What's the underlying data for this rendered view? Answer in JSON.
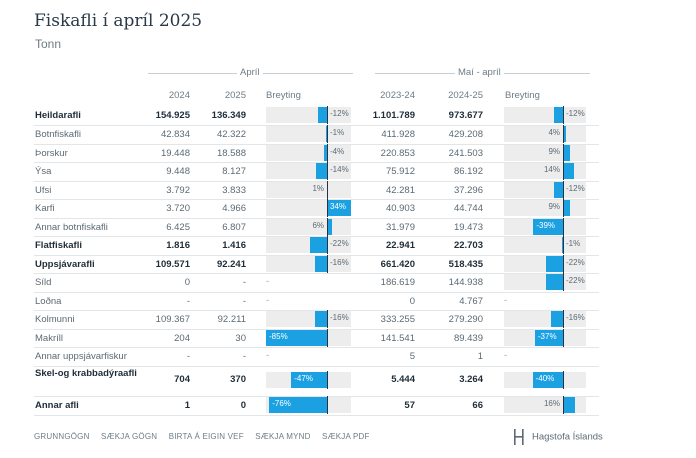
{
  "title": "Fiskafli í apríl 2025",
  "subtitle": "Tonn",
  "groups": {
    "april": "Apríl",
    "may_april": "Maí - apríl"
  },
  "headers": {
    "y2024": "2024",
    "y2025": "2025",
    "change1": "Breyting",
    "p2324": "2023-24",
    "p2425": "2024-25",
    "change2": "Breyting"
  },
  "colors": {
    "bar": "#1ba1e2",
    "bar_bg": "#ededed",
    "axis": "#243442"
  },
  "rows": [
    {
      "name": "Heildarafli",
      "bold": true,
      "v2024": "154.925",
      "v2025": "136.349",
      "chg1": "-12%",
      "chg1_value": -12,
      "v2324": "1.101.789",
      "v2425": "973.677",
      "chg2": "-12%",
      "chg2_value": -12
    },
    {
      "name": "Botnfiskafli",
      "bold": false,
      "v2024": "42.834",
      "v2025": "42.322",
      "chg1": "-1%",
      "chg1_value": -1,
      "v2324": "411.928",
      "v2425": "429.208",
      "chg2": "4%",
      "chg2_value": 4
    },
    {
      "name": "Þorskur",
      "bold": false,
      "v2024": "19.448",
      "v2025": "18.588",
      "chg1": "-4%",
      "chg1_value": -4,
      "v2324": "220.853",
      "v2425": "241.503",
      "chg2": "9%",
      "chg2_value": 9
    },
    {
      "name": "Ýsa",
      "bold": false,
      "v2024": "9.448",
      "v2025": "8.127",
      "chg1": "-14%",
      "chg1_value": -14,
      "v2324": "75.912",
      "v2425": "86.192",
      "chg2": "14%",
      "chg2_value": 14
    },
    {
      "name": "Ufsi",
      "bold": false,
      "v2024": "3.792",
      "v2025": "3.833",
      "chg1": "1%",
      "chg1_value": 1,
      "v2324": "42.281",
      "v2425": "37.296",
      "chg2": "-12%",
      "chg2_value": -12
    },
    {
      "name": "Karfi",
      "bold": false,
      "v2024": "3.720",
      "v2025": "4.966",
      "chg1": "34%",
      "chg1_value": 34,
      "v2324": "40.903",
      "v2425": "44.744",
      "chg2": "9%",
      "chg2_value": 9
    },
    {
      "name": "Annar botnfiskafli",
      "bold": false,
      "v2024": "6.425",
      "v2025": "6.807",
      "chg1": "6%",
      "chg1_value": 6,
      "v2324": "31.979",
      "v2425": "19.473",
      "chg2": "-39%",
      "chg2_value": -39
    },
    {
      "name": "Flatfiskafli",
      "bold": true,
      "v2024": "1.816",
      "v2025": "1.416",
      "chg1": "-22%",
      "chg1_value": -22,
      "v2324": "22.941",
      "v2425": "22.703",
      "chg2": "-1%",
      "chg2_value": -1
    },
    {
      "name": "Uppsjávarafli",
      "bold": true,
      "v2024": "109.571",
      "v2025": "92.241",
      "chg1": "-16%",
      "chg1_value": -16,
      "v2324": "661.420",
      "v2425": "518.435",
      "chg2": "-22%",
      "chg2_value": -22
    },
    {
      "name": "Síld",
      "bold": false,
      "v2024": "0",
      "v2025": "-",
      "chg1": "-",
      "chg1_value": null,
      "v2324": "186.619",
      "v2425": "144.938",
      "chg2": "-22%",
      "chg2_value": -22
    },
    {
      "name": "Loðna",
      "bold": false,
      "v2024": "-",
      "v2025": "-",
      "chg1": "-",
      "chg1_value": null,
      "v2324": "0",
      "v2425": "4.767",
      "chg2": "-",
      "chg2_value": null
    },
    {
      "name": "Kolmunni",
      "bold": false,
      "v2024": "109.367",
      "v2025": "92.211",
      "chg1": "-16%",
      "chg1_value": -16,
      "v2324": "333.255",
      "v2425": "279.290",
      "chg2": "-16%",
      "chg2_value": -16
    },
    {
      "name": "Makríll",
      "bold": false,
      "v2024": "204",
      "v2025": "30",
      "chg1": "-85%",
      "chg1_value": -85,
      "v2324": "141.541",
      "v2425": "89.439",
      "chg2": "-37%",
      "chg2_value": -37
    },
    {
      "name": "Annar uppsjávarfiskur",
      "bold": false,
      "v2024": "-",
      "v2025": "-",
      "chg1": "-",
      "chg1_value": null,
      "v2324": "5",
      "v2425": "1",
      "chg2": "-",
      "chg2_value": null
    },
    {
      "name": "Skel-og krabbadýraafli",
      "bold": true,
      "v2024": "704",
      "v2025": "370",
      "chg1": "-47%",
      "chg1_value": -47,
      "v2324": "5.444",
      "v2425": "3.264",
      "chg2": "-40%",
      "chg2_value": -40
    },
    {
      "name": "Annar afli",
      "bold": true,
      "v2024": "1",
      "v2025": "0",
      "chg1": "-76%",
      "chg1_value": -76,
      "v2324": "57",
      "v2425": "66",
      "chg2": "16%",
      "chg2_value": 16
    }
  ],
  "footer": {
    "links": [
      "GRUNNGÖGN",
      "SÆKJA GÖGN",
      "BIRTA Á EIGIN VEF",
      "SÆKJA MYND",
      "SÆKJA PDF"
    ],
    "logo": "Hagstofa Íslands",
    "logo_icon": "hagstofa-logo-icon"
  }
}
